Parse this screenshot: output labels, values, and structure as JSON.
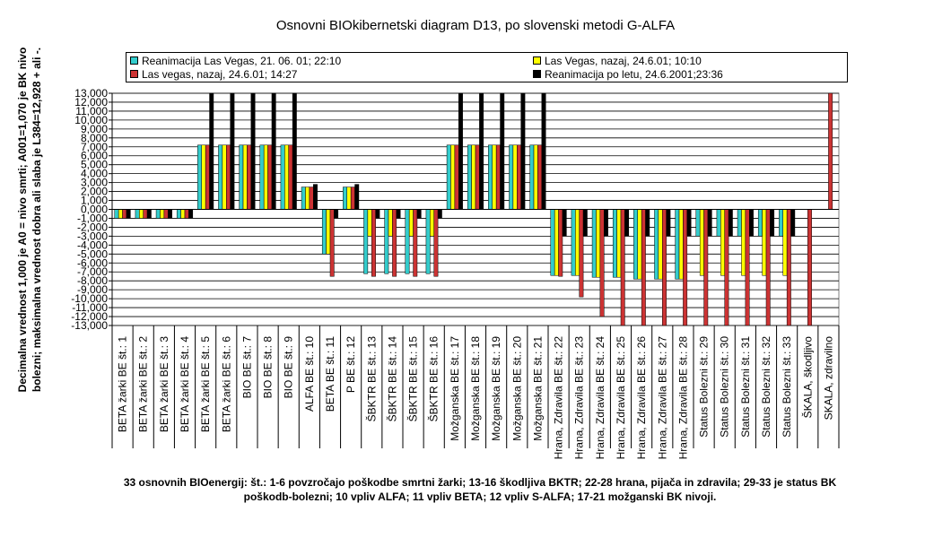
{
  "chart_data": {
    "type": "bar",
    "title": "Osnovni BIOkibernetski diagram D13, po slovenski metodi G-ALFA",
    "ylabel": "Decimalna vrednost 1,000 je A0 = nivo smrti; A001=1,070 je BK nivo bolezni; maksimalna vrednost dobra ali slaba je L384=12,928 + ali -.",
    "xlabel": "",
    "ylim": [
      -13,
      13
    ],
    "ytick_labels": [
      "13,000",
      "12,000",
      "11,000",
      "10,000",
      "9,000",
      "8,000",
      "7,000",
      "6,000",
      "5,000",
      "4,000",
      "3,000",
      "2,000",
      "1,000",
      "0,000",
      "-1,000",
      "-2,000",
      "-3,000",
      "-4,000",
      "-5,000",
      "-6,000",
      "-7,000",
      "-8,000",
      "-9,000",
      "-10,000",
      "-11,000",
      "-12,000",
      "-13,000"
    ],
    "ytick_values": [
      13,
      12,
      11,
      10,
      9,
      8,
      7,
      6,
      5,
      4,
      3,
      2,
      1,
      0,
      -1,
      -2,
      -3,
      -4,
      -5,
      -6,
      -7,
      -8,
      -9,
      -10,
      -11,
      -12,
      -13
    ],
    "grid": true,
    "legend_position": "top",
    "categories": [
      "BETA žarki BE št.: 1",
      "BETA žarki BE št.: 2",
      "BETA žarki BE št.: 3",
      "BETA žarki BE št.: 4",
      "BETA žarki BE št.: 5",
      "BETA žarki BE št.: 6",
      "BIO  BE št.: 7",
      "BIO  BE št.: 8",
      "BIO  BE št.: 9",
      "ALFA  BE št.: 10",
      "BETA BE št.: 11",
      "P  BE št.: 12",
      "ŠBKTR BE št.: 13",
      "ŠBKTR BE št.: 14",
      "ŠBKTR BE št.: 15",
      "ŠBKTR BE št.: 16",
      "Možganska  BE št.: 17",
      "Možganska  BE št.: 18",
      "Možganska  BE št.: 19",
      "Možganska  BE št.: 20",
      "Možganska  BE št.: 21",
      "Hrana, Zdravila BE št.: 22",
      "Hrana, Zdravila BE št.: 23",
      "Hrana, Zdravila BE št.: 24",
      "Hrana, Zdravila BE št.: 25",
      "Hrana, Zdravila BE št.: 26",
      "Hrana, Zdravila BE št.: 27",
      "Hrana, Zdravila BE št.: 28",
      "Status Bolezni št.: 29",
      "Status Bolezni št.: 30",
      "Status Bolezni št.: 31",
      "Status Bolezni št.: 32",
      "Status Bolezni št.: 33",
      "ŠKALA, škodljivo",
      "SKALA, zdravilno"
    ],
    "series": [
      {
        "name": "Reanimacija Las Vegas,  21. 06. 01; 22:10",
        "color": "#33cccc",
        "values": [
          -1,
          -1,
          -1,
          -1,
          7.2,
          7.2,
          7.2,
          7.2,
          7.2,
          2.5,
          -5,
          2.5,
          -7.2,
          -7.2,
          -7.2,
          -7.2,
          7.2,
          7.2,
          7.2,
          7.2,
          7.2,
          -7.4,
          -7.4,
          -7.6,
          -7.6,
          -7.8,
          -7.8,
          -7.8,
          -3,
          -3,
          -3,
          -3,
          -3,
          0,
          0
        ]
      },
      {
        "name": "Las Vegas, nazaj, 24.6.01; 10:10",
        "color": "#ffff00",
        "values": [
          -1,
          -1,
          -1,
          -1,
          7.2,
          7.2,
          7.2,
          7.2,
          7.2,
          2.5,
          -5,
          2.5,
          -3,
          -3,
          -3,
          -3,
          7.2,
          7.2,
          7.2,
          7.2,
          7.2,
          -7.4,
          -7.4,
          -7.6,
          -7.6,
          -7.8,
          -7.8,
          -7.8,
          -7.4,
          -7.4,
          -7.4,
          -7.4,
          -7.4,
          0,
          0
        ]
      },
      {
        "name": "Las vegas, nazaj, 24.6.01; 14:27",
        "color": "#cc3333",
        "values": [
          -1,
          -1,
          -1,
          -1,
          7.2,
          7.2,
          7.2,
          7.2,
          7.2,
          2.5,
          -7.5,
          2.5,
          -7.5,
          -7.5,
          -7.5,
          -7.5,
          7.2,
          7.2,
          7.2,
          7.2,
          7.2,
          -7.5,
          -9.8,
          -12,
          -13,
          -13,
          -13,
          -13,
          -13,
          -13,
          -13,
          -13,
          -13,
          -13,
          13
        ]
      },
      {
        "name": "Reanimacija po letu, 24.6.2001;23:36",
        "color": "#000000",
        "values": [
          -1,
          -1,
          -1,
          -1,
          13,
          13,
          13,
          13,
          13,
          2.8,
          -1,
          2.8,
          -1,
          -1,
          -1,
          -1,
          13,
          13,
          13,
          13,
          13,
          -3,
          -3,
          -3,
          -3,
          -3,
          -3,
          -3,
          -3,
          -3,
          -3,
          -3,
          -3,
          0,
          0
        ]
      }
    ]
  },
  "caption": "33 osnovnih BIOenergij: št.: 1-6 povzročajo poškodbe smrtni žarki; 13-16 škodljiva BKTR; 22-28 hrana, pijača in zdravila; 29-33 je status BK poškodb-bolezni; 10 vpliv ALFA; 11 vpliv BETA; 12 vpliv S-ALFA; 17-21 možganski BK nivoji."
}
